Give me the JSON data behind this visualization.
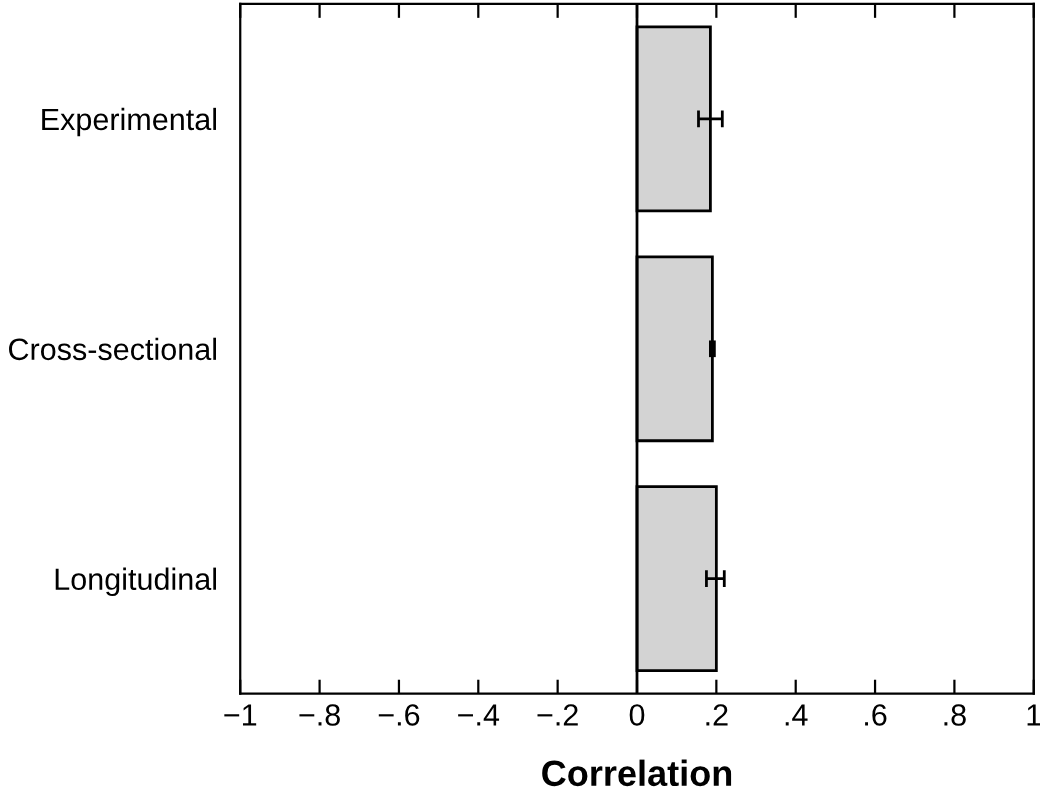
{
  "chart_data": {
    "type": "bar",
    "orientation": "horizontal",
    "xlabel": "Correlation",
    "categories": [
      "Experimental",
      "Cross-sectional",
      "Longitudinal"
    ],
    "series": [
      {
        "color": "#d3d3d3",
        "values": [
          0.185,
          0.19,
          0.2
        ],
        "errors": [
          [
            0.155,
            0.215
          ],
          [
            0.185,
            0.195
          ],
          [
            0.175,
            0.22
          ]
        ]
      }
    ],
    "xlim": [
      -1,
      1
    ],
    "xticks": [
      {
        "value": -1,
        "label": "−1"
      },
      {
        "value": -0.8,
        "label": "−.8"
      },
      {
        "value": -0.6,
        "label": "−.6"
      },
      {
        "value": -0.4,
        "label": "−.4"
      },
      {
        "value": -0.2,
        "label": "−.2"
      },
      0,
      {
        "value": 0.2,
        "label": ".2"
      },
      {
        "value": 0.4,
        "label": ".4"
      },
      {
        "value": 0.6,
        "label": ".6"
      },
      {
        "value": 0.8,
        "label": ".8"
      },
      1
    ],
    "ref_lines": [
      {
        "axis": "x",
        "value": 0,
        "color": "#000000"
      }
    ],
    "grid": false,
    "legend": false
  }
}
